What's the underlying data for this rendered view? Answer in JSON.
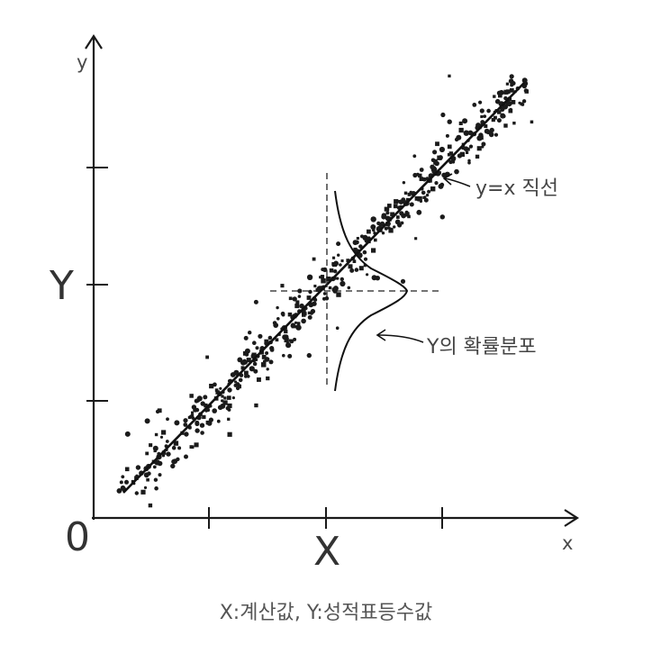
{
  "chart_data": {
    "type": "scatter",
    "xlabel": "x",
    "ylabel": "y",
    "mean_x_label": "X",
    "mean_y_label": "Y",
    "origin_label": "0",
    "reference_line": {
      "label": "y=x 직선"
    },
    "distribution_annotation": {
      "label": "Y의 확률분포"
    },
    "caption": "X:계산값, Y:성적표등수값",
    "grid": false
  }
}
